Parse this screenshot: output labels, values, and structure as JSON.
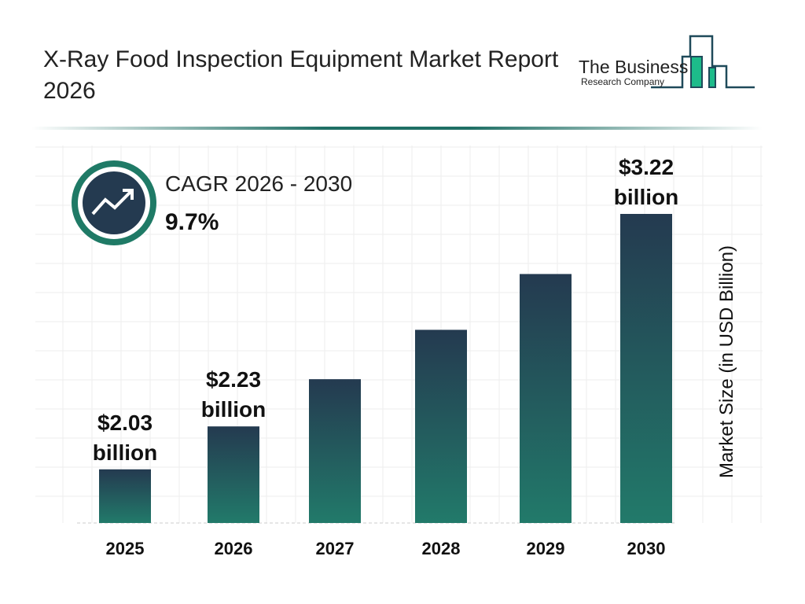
{
  "title": "X-Ray Food Inspection Equipment Market Report 2026",
  "logo": {
    "line1": "The Business",
    "line2": "Research Company"
  },
  "cagr": {
    "label": "CAGR 2026 - 2030",
    "value": "9.7%",
    "icon": "trending-up-icon"
  },
  "colors": {
    "bar_top": "#243a50",
    "bar_bottom": "#227a6a",
    "accent": "#1f7a66"
  },
  "chart_data": {
    "type": "bar",
    "title": "X-Ray Food Inspection Equipment Market Report 2026",
    "categories": [
      "2025",
      "2026",
      "2027",
      "2028",
      "2029",
      "2030"
    ],
    "values": [
      2.03,
      2.23,
      2.45,
      2.68,
      2.94,
      3.22
    ],
    "data_labels": [
      {
        "index": 0,
        "line1": "$2.03",
        "line2": "billion"
      },
      {
        "index": 1,
        "line1": "$2.23",
        "line2": "billion"
      },
      {
        "index": 5,
        "line1": "$3.22",
        "line2": "billion"
      }
    ],
    "xlabel": "",
    "ylabel": "Market Size (in USD Billion)",
    "grid": true
  }
}
